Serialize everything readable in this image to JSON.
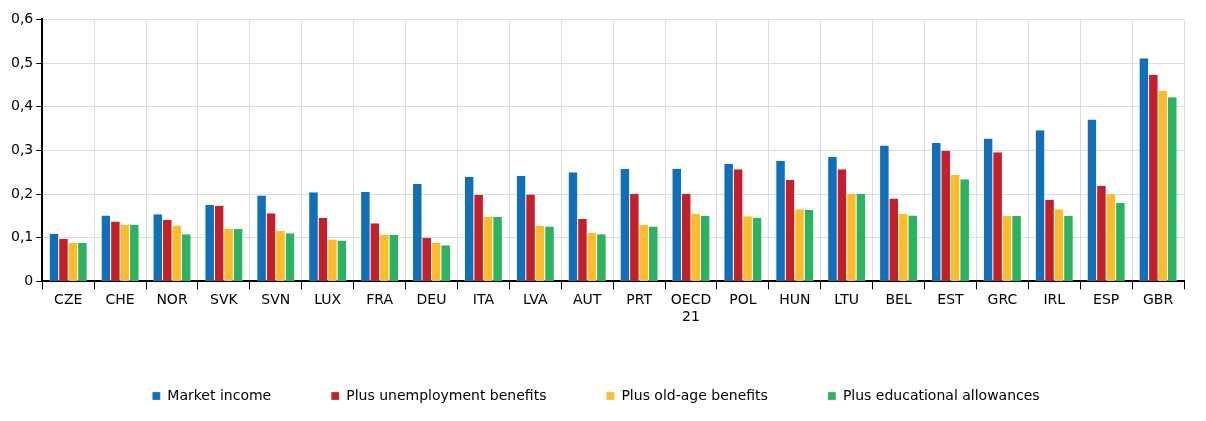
{
  "chart_data": {
    "type": "bar",
    "categories": [
      "CZE",
      "CHE",
      "NOR",
      "SVK",
      "SVN",
      "LUX",
      "FRA",
      "DEU",
      "ITA",
      "LVA",
      "AUT",
      "PRT",
      "OECD 21",
      "POL",
      "HUN",
      "LTU",
      "BEL",
      "EST",
      "GRC",
      "IRL",
      "ESP",
      "GBR"
    ],
    "series": [
      {
        "name": "Market income",
        "color": "#0f6fba",
        "values": [
          0.109,
          0.151,
          0.154,
          0.175,
          0.197,
          0.204,
          0.205,
          0.223,
          0.239,
          0.242,
          0.25,
          0.258,
          0.258,
          0.269,
          0.276,
          0.285,
          0.311,
          0.317,
          0.327,
          0.346,
          0.371,
          0.511
        ]
      },
      {
        "name": "Plus unemployment benefits",
        "color": "#c4202a",
        "values": [
          0.097,
          0.137,
          0.141,
          0.173,
          0.156,
          0.145,
          0.133,
          0.1,
          0.198,
          0.199,
          0.143,
          0.201,
          0.201,
          0.257,
          0.232,
          0.257,
          0.19,
          0.299,
          0.296,
          0.187,
          0.219,
          0.473
        ]
      },
      {
        "name": "Plus old-age benefits",
        "color": "#fdbd2a",
        "values": [
          0.088,
          0.13,
          0.128,
          0.12,
          0.116,
          0.096,
          0.107,
          0.088,
          0.148,
          0.127,
          0.111,
          0.129,
          0.155,
          0.149,
          0.165,
          0.2,
          0.155,
          0.244,
          0.15,
          0.165,
          0.2,
          0.436
        ]
      },
      {
        "name": "Plus educational allowances",
        "color": "#2ab361",
        "values": [
          0.088,
          0.13,
          0.108,
          0.12,
          0.11,
          0.093,
          0.106,
          0.083,
          0.148,
          0.126,
          0.108,
          0.126,
          0.15,
          0.146,
          0.164,
          0.2,
          0.151,
          0.234,
          0.15,
          0.15,
          0.18,
          0.422
        ]
      }
    ],
    "ylim": [
      0,
      0.6
    ],
    "yticks": [
      0,
      {
        "value": 0.1,
        "label": "0,1"
      },
      {
        "value": 0.2,
        "label": "0,2"
      },
      {
        "value": 0.3,
        "label": "0,3"
      },
      {
        "value": 0.4,
        "label": "0,4"
      },
      {
        "value": 0.5,
        "label": "0,5"
      },
      {
        "value": 0.6,
        "label": "0,6"
      }
    ],
    "grid": true,
    "legend": "bottom"
  }
}
